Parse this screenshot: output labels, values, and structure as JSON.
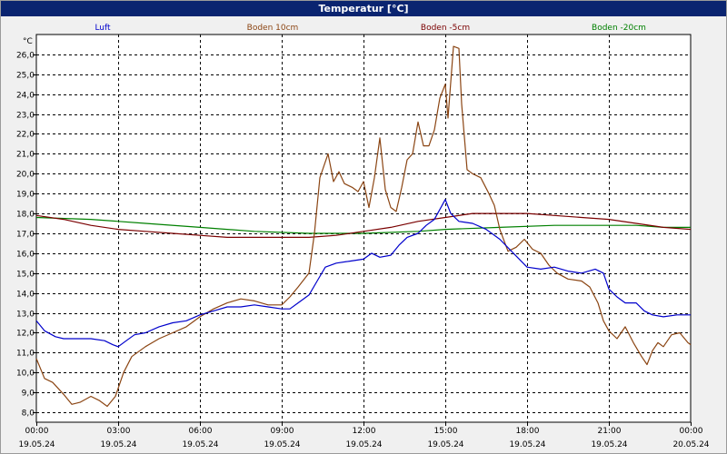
{
  "window": {
    "title": "Temperatur [°C]"
  },
  "colors": {
    "background": "#ffffff",
    "titlebar": "#0a2470",
    "plot_bg": "#ffffff",
    "grid": "#000000"
  },
  "chart_data": {
    "type": "line",
    "title": "Temperatur [°C]",
    "ylabel": "°C",
    "ylim": [
      7.5,
      27
    ],
    "y_ticks": [
      "8,0",
      "9,0",
      "10,0",
      "11,0",
      "12,0",
      "13,0",
      "14,0",
      "15,0",
      "16,0",
      "17,0",
      "18,0",
      "19,0",
      "20,0",
      "21,0",
      "22,0",
      "23,0",
      "24,0",
      "25,0",
      "26,0"
    ],
    "y_tick_values": [
      8,
      9,
      10,
      11,
      12,
      13,
      14,
      15,
      16,
      17,
      18,
      19,
      20,
      21,
      22,
      23,
      24,
      25,
      26
    ],
    "xlim": [
      0,
      24
    ],
    "x_ticks": [
      {
        "time": "00:00",
        "date": "19.05.24",
        "h": 0
      },
      {
        "time": "03:00",
        "date": "19.05.24",
        "h": 3
      },
      {
        "time": "06:00",
        "date": "19.05.24",
        "h": 6
      },
      {
        "time": "09:00",
        "date": "19.05.24",
        "h": 9
      },
      {
        "time": "12:00",
        "date": "19.05.24",
        "h": 12
      },
      {
        "time": "15:00",
        "date": "19.05.24",
        "h": 15
      },
      {
        "time": "18:00",
        "date": "19.05.24",
        "h": 18
      },
      {
        "time": "21:00",
        "date": "19.05.24",
        "h": 21
      },
      {
        "time": "00:00",
        "date": "20.05.24",
        "h": 24
      }
    ],
    "grid": true,
    "legend_position": "top",
    "series": [
      {
        "name": "Luft",
        "color": "#0000cc",
        "points": [
          [
            0,
            12.6
          ],
          [
            0.3,
            12.1
          ],
          [
            0.7,
            11.8
          ],
          [
            1,
            11.7
          ],
          [
            1.5,
            11.7
          ],
          [
            2,
            11.7
          ],
          [
            2.5,
            11.6
          ],
          [
            2.8,
            11.4
          ],
          [
            3,
            11.3
          ],
          [
            3.3,
            11.6
          ],
          [
            3.6,
            11.9
          ],
          [
            4,
            12.0
          ],
          [
            4.5,
            12.3
          ],
          [
            5,
            12.5
          ],
          [
            5.5,
            12.6
          ],
          [
            6,
            12.9
          ],
          [
            6.5,
            13.1
          ],
          [
            7,
            13.3
          ],
          [
            7.5,
            13.3
          ],
          [
            8,
            13.4
          ],
          [
            8.5,
            13.3
          ],
          [
            9,
            13.2
          ],
          [
            9.3,
            13.2
          ],
          [
            9.6,
            13.5
          ],
          [
            10,
            13.9
          ],
          [
            10.3,
            14.6
          ],
          [
            10.6,
            15.3
          ],
          [
            11,
            15.5
          ],
          [
            11.5,
            15.6
          ],
          [
            12,
            15.7
          ],
          [
            12.3,
            16.0
          ],
          [
            12.6,
            15.8
          ],
          [
            13,
            15.9
          ],
          [
            13.3,
            16.4
          ],
          [
            13.6,
            16.8
          ],
          [
            14,
            17.0
          ],
          [
            14.3,
            17.4
          ],
          [
            14.6,
            17.7
          ],
          [
            14.8,
            18.2
          ],
          [
            15,
            18.7
          ],
          [
            15.2,
            18.0
          ],
          [
            15.5,
            17.6
          ],
          [
            16,
            17.5
          ],
          [
            16.5,
            17.2
          ],
          [
            17,
            16.7
          ],
          [
            17.5,
            16.0
          ],
          [
            18,
            15.3
          ],
          [
            18.5,
            15.2
          ],
          [
            19,
            15.3
          ],
          [
            19.5,
            15.1
          ],
          [
            20,
            15.0
          ],
          [
            20.5,
            15.2
          ],
          [
            20.8,
            15.0
          ],
          [
            21,
            14.2
          ],
          [
            21.3,
            13.8
          ],
          [
            21.6,
            13.5
          ],
          [
            22,
            13.5
          ],
          [
            22.3,
            13.1
          ],
          [
            22.6,
            12.9
          ],
          [
            23,
            12.8
          ],
          [
            23.5,
            12.9
          ],
          [
            24,
            12.9
          ]
        ]
      },
      {
        "name": "Boden 10cm",
        "color": "#8b4513",
        "points": [
          [
            0,
            10.7
          ],
          [
            0.3,
            9.7
          ],
          [
            0.6,
            9.5
          ],
          [
            1,
            8.9
          ],
          [
            1.3,
            8.4
          ],
          [
            1.6,
            8.5
          ],
          [
            2,
            8.8
          ],
          [
            2.3,
            8.6
          ],
          [
            2.6,
            8.3
          ],
          [
            2.9,
            8.8
          ],
          [
            3.2,
            10.0
          ],
          [
            3.5,
            10.8
          ],
          [
            4,
            11.3
          ],
          [
            4.5,
            11.7
          ],
          [
            5,
            12.0
          ],
          [
            5.5,
            12.3
          ],
          [
            6,
            12.8
          ],
          [
            6.5,
            13.2
          ],
          [
            7,
            13.5
          ],
          [
            7.5,
            13.7
          ],
          [
            8,
            13.6
          ],
          [
            8.5,
            13.4
          ],
          [
            9,
            13.4
          ],
          [
            9.3,
            13.8
          ],
          [
            9.6,
            14.3
          ],
          [
            10,
            15.0
          ],
          [
            10.2,
            17.0
          ],
          [
            10.4,
            19.8
          ],
          [
            10.7,
            21.0
          ],
          [
            10.9,
            19.6
          ],
          [
            11.1,
            20.1
          ],
          [
            11.3,
            19.5
          ],
          [
            11.6,
            19.3
          ],
          [
            11.8,
            19.1
          ],
          [
            12,
            19.6
          ],
          [
            12.2,
            18.3
          ],
          [
            12.4,
            19.8
          ],
          [
            12.6,
            21.8
          ],
          [
            12.8,
            19.2
          ],
          [
            13,
            18.3
          ],
          [
            13.2,
            18.1
          ],
          [
            13.4,
            19.3
          ],
          [
            13.6,
            20.7
          ],
          [
            13.8,
            21.0
          ],
          [
            14,
            22.6
          ],
          [
            14.2,
            21.4
          ],
          [
            14.4,
            21.4
          ],
          [
            14.6,
            22.2
          ],
          [
            14.8,
            23.8
          ],
          [
            15,
            24.5
          ],
          [
            15.1,
            22.8
          ],
          [
            15.3,
            26.4
          ],
          [
            15.5,
            26.3
          ],
          [
            15.6,
            23.5
          ],
          [
            15.8,
            20.2
          ],
          [
            16,
            20.0
          ],
          [
            16.3,
            19.8
          ],
          [
            16.6,
            19.0
          ],
          [
            16.8,
            18.4
          ],
          [
            17,
            17.2
          ],
          [
            17.3,
            16.1
          ],
          [
            17.6,
            16.3
          ],
          [
            17.9,
            16.7
          ],
          [
            18.2,
            16.2
          ],
          [
            18.5,
            16.0
          ],
          [
            18.8,
            15.4
          ],
          [
            19.1,
            15.0
          ],
          [
            19.5,
            14.7
          ],
          [
            20,
            14.6
          ],
          [
            20.3,
            14.3
          ],
          [
            20.6,
            13.5
          ],
          [
            20.8,
            12.6
          ],
          [
            21,
            12.1
          ],
          [
            21.3,
            11.7
          ],
          [
            21.6,
            12.3
          ],
          [
            21.9,
            11.5
          ],
          [
            22.2,
            10.8
          ],
          [
            22.4,
            10.4
          ],
          [
            22.6,
            11.1
          ],
          [
            22.8,
            11.5
          ],
          [
            23,
            11.3
          ],
          [
            23.3,
            11.9
          ],
          [
            23.6,
            12.0
          ],
          [
            23.9,
            11.5
          ],
          [
            24,
            11.4
          ]
        ]
      },
      {
        "name": "Boden -5cm",
        "color": "#7a0000",
        "points": [
          [
            0,
            17.9
          ],
          [
            1,
            17.7
          ],
          [
            2,
            17.4
          ],
          [
            3,
            17.2
          ],
          [
            4,
            17.1
          ],
          [
            5,
            17.0
          ],
          [
            6,
            16.9
          ],
          [
            7,
            16.8
          ],
          [
            8,
            16.8
          ],
          [
            9,
            16.8
          ],
          [
            10,
            16.8
          ],
          [
            11,
            16.9
          ],
          [
            12,
            17.1
          ],
          [
            13,
            17.3
          ],
          [
            14,
            17.6
          ],
          [
            15,
            17.8
          ],
          [
            16,
            18.0
          ],
          [
            17,
            18.0
          ],
          [
            18,
            18.0
          ],
          [
            19,
            17.9
          ],
          [
            20,
            17.8
          ],
          [
            21,
            17.7
          ],
          [
            22,
            17.5
          ],
          [
            23,
            17.3
          ],
          [
            24,
            17.2
          ]
        ]
      },
      {
        "name": "Boden -20cm",
        "color": "#008000",
        "points": [
          [
            0,
            17.8
          ],
          [
            2,
            17.7
          ],
          [
            4,
            17.5
          ],
          [
            6,
            17.3
          ],
          [
            8,
            17.1
          ],
          [
            10,
            17.0
          ],
          [
            12,
            17.0
          ],
          [
            14,
            17.1
          ],
          [
            15,
            17.2
          ],
          [
            17,
            17.3
          ],
          [
            19,
            17.4
          ],
          [
            21,
            17.4
          ],
          [
            22,
            17.4
          ],
          [
            23,
            17.3
          ],
          [
            24,
            17.3
          ]
        ]
      }
    ]
  }
}
